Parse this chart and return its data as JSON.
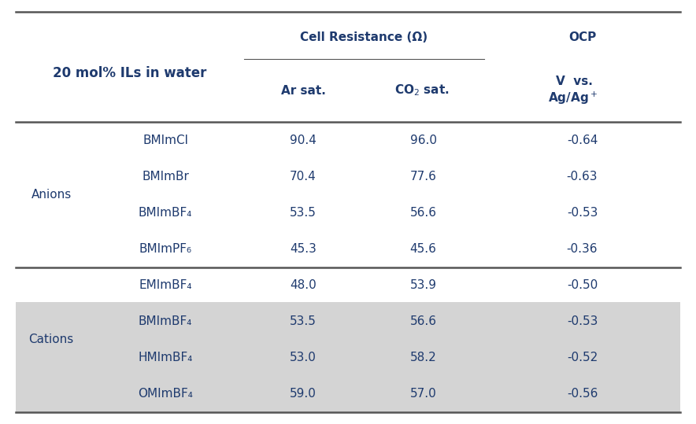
{
  "title_col1": "20 mol% ILs in water",
  "header_cell_resistance": "Cell Resistance (Ω)",
  "header_ar": "Ar sat.",
  "header_co2": "CO₂ sat.",
  "header_ocp": "OCP",
  "group1_label": "Anions",
  "group2_label": "Cations",
  "rows": [
    {
      "group": "Anions",
      "compound": "BMImCl",
      "ar": "90.4",
      "co2": "96.0",
      "ocp": "-0.64"
    },
    {
      "group": "Anions",
      "compound": "BMImBr",
      "ar": "70.4",
      "co2": "77.6",
      "ocp": "-0.63"
    },
    {
      "group": "Anions",
      "compound": "BMImBF₄",
      "ar": "53.5",
      "co2": "56.6",
      "ocp": "-0.53"
    },
    {
      "group": "Anions",
      "compound": "BMImPF₆",
      "ar": "45.3",
      "co2": "45.6",
      "ocp": "-0.36"
    },
    {
      "group": "Cations",
      "compound": "EMImBF₄",
      "ar": "48.0",
      "co2": "53.9",
      "ocp": "-0.50"
    },
    {
      "group": "Cations",
      "compound": "BMImBF₄",
      "ar": "53.5",
      "co2": "56.6",
      "ocp": "-0.53"
    },
    {
      "group": "Cations",
      "compound": "HMImBF₄",
      "ar": "53.0",
      "co2": "58.2",
      "ocp": "-0.52"
    },
    {
      "group": "Cations",
      "compound": "OMImBF₄",
      "ar": "59.0",
      "co2": "57.0",
      "ocp": "-0.56"
    }
  ],
  "header_bg": "#d4d4d4",
  "white_bg": "#ffffff",
  "text_color": "#1e3a6e",
  "line_color": "#555555",
  "font_size_title": 12,
  "font_size_header": 11,
  "font_size_data": 11,
  "font_size_group": 11
}
